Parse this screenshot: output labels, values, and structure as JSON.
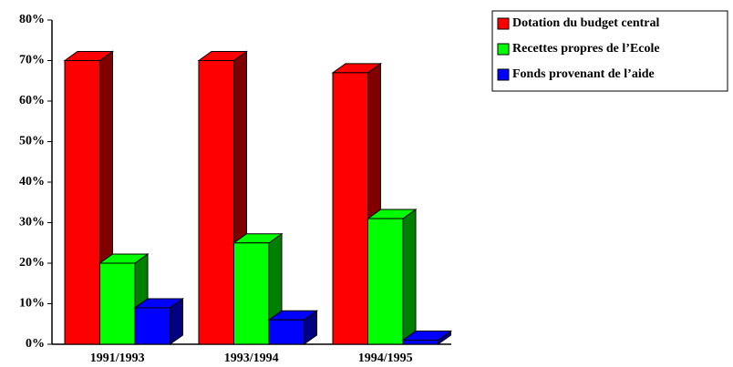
{
  "chart_data": {
    "type": "bar3d",
    "categories": [
      "1991/1993",
      "1993/1994",
      "1994/1995"
    ],
    "series": [
      {
        "name": "Dotation du budget central",
        "color": "#ff0000",
        "side_color": "#800000",
        "values": [
          70,
          70,
          67
        ]
      },
      {
        "name": "Recettes propres  de l’Ecole",
        "color": "#00ff00",
        "side_color": "#008000",
        "values": [
          20,
          25,
          31
        ]
      },
      {
        "name": "Fonds provenant de l’aide",
        "color": "#0000ff",
        "side_color": "#000080",
        "values": [
          9,
          6,
          1
        ]
      }
    ],
    "ylim": [
      0,
      80
    ],
    "yticks": [
      {
        "value": 0,
        "label": "0%"
      },
      {
        "value": 10,
        "label": "10%"
      },
      {
        "value": 20,
        "label": "20%"
      },
      {
        "value": 30,
        "label": "30%"
      },
      {
        "value": 40,
        "label": "40%"
      },
      {
        "value": 50,
        "label": "50%"
      },
      {
        "value": 60,
        "label": "60%"
      },
      {
        "value": 70,
        "label": "70%"
      },
      {
        "value": 80,
        "label": "80%"
      }
    ],
    "legend": "top-right"
  }
}
